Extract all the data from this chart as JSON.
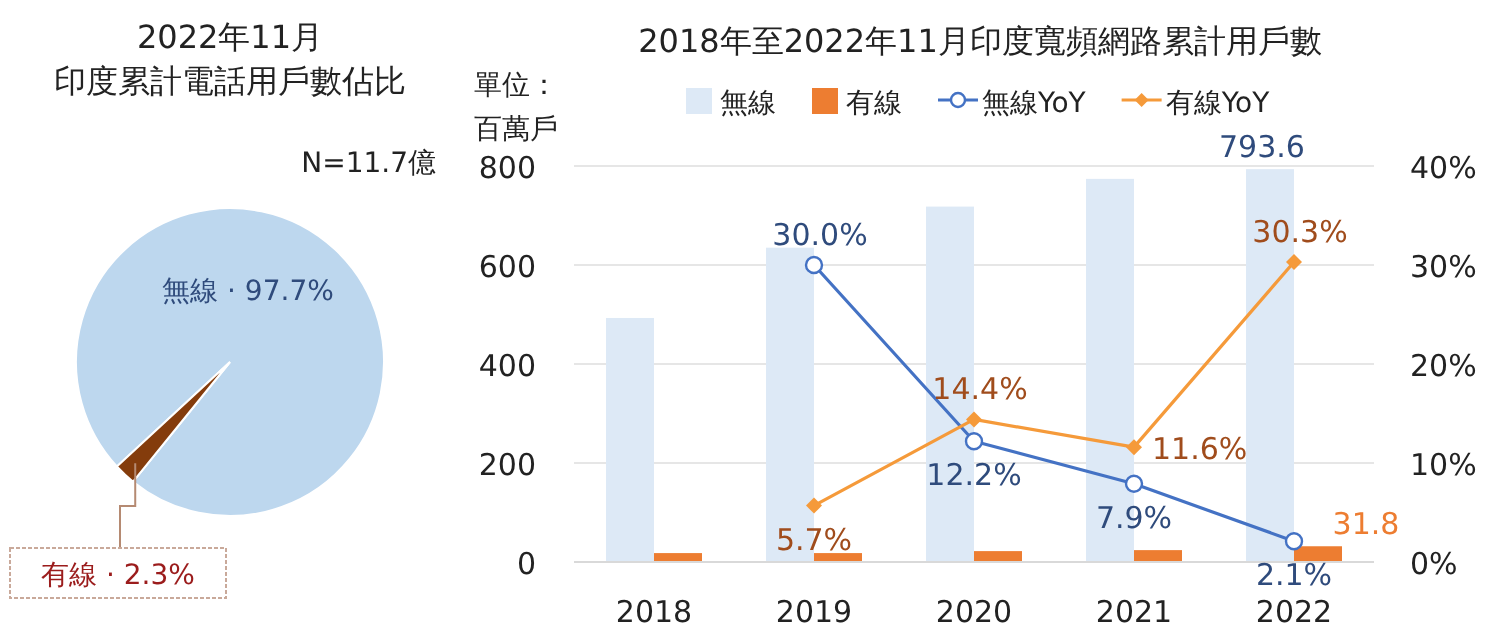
{
  "chart_data": [
    {
      "type": "pie",
      "title": "2022年11月",
      "subtitle": "印度累計電話用戶數佔比",
      "annotations": [
        "N=11.7億"
      ],
      "categories": [
        "無線",
        "有線"
      ],
      "values": [
        97.7,
        2.3
      ],
      "colors": [
        "#bdd7ee",
        "#843c0c"
      ],
      "value_labels": [
        "· 97.7%",
        "· 2.3%"
      ]
    },
    {
      "type": "bar",
      "title": "2018年至2022年11月印度寬頻網路累計用戶數",
      "ylabel": "單位：百萬戶",
      "categories": [
        "2018",
        "2019",
        "2020",
        "2021",
        "2022"
      ],
      "series": [
        {
          "name": "無線",
          "color": "#dde9f6",
          "values": [
            493,
            635,
            718,
            774,
            793.6
          ],
          "value_labels": [
            null,
            null,
            null,
            null,
            "793.6"
          ]
        },
        {
          "name": "有線",
          "color": "#ed7d31",
          "values": [
            18,
            18,
            22,
            24,
            31.8
          ],
          "value_labels": [
            null,
            null,
            null,
            null,
            "31.8"
          ]
        },
        {
          "name": "無線YoY",
          "type": "line",
          "axis": "y2",
          "color": "#4472c4",
          "marker": "circle",
          "values": [
            null,
            30.0,
            12.2,
            7.9,
            2.1
          ],
          "value_labels": [
            null,
            "30.0%",
            "12.2%",
            "7.9%",
            "2.1%"
          ]
        },
        {
          "name": "有線YoY",
          "type": "line",
          "axis": "y2",
          "color": "#f59a3a",
          "marker": "diamond",
          "values": [
            null,
            5.7,
            14.4,
            11.6,
            30.3
          ],
          "value_labels": [
            null,
            "5.7%",
            "14.4%",
            "11.6%",
            "30.3%"
          ]
        }
      ],
      "ylim": [
        0,
        800
      ],
      "yticks": [
        0,
        200,
        400,
        600,
        800
      ],
      "y2lim": [
        0,
        40
      ],
      "y2ticks": [
        {
          "value": 0,
          "label": "0%"
        },
        {
          "value": 10,
          "label": "10%"
        },
        {
          "value": 20,
          "label": "20%"
        },
        {
          "value": 30,
          "label": "30%"
        },
        {
          "value": 40,
          "label": "40%"
        }
      ],
      "grid": "y",
      "legend": "top"
    }
  ]
}
